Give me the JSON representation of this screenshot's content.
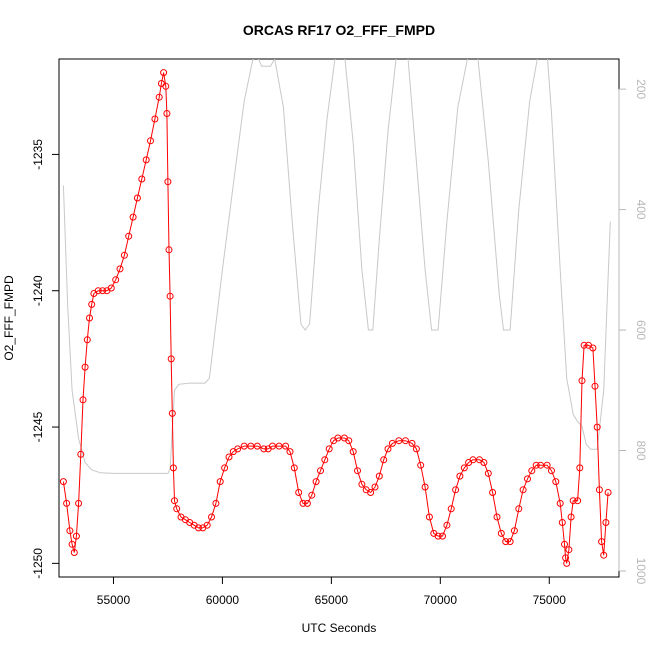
{
  "chart_data": {
    "type": "line",
    "title": "ORCAS RF17 O2_FFF_FMPD",
    "xlabel": "UTC Seconds",
    "ylabel": "O2_FFF_FMPD",
    "xlim": [
      52500,
      78200
    ],
    "ylim": [
      -1250.5,
      -1231.5
    ],
    "x_ticks": [
      55000,
      60000,
      65000,
      70000,
      75000
    ],
    "y_ticks": [
      -1235,
      -1240,
      -1245,
      -1250
    ],
    "right_axis": {
      "label": "",
      "ylim": [
        1010,
        150
      ],
      "ticks": [
        200,
        400,
        600,
        800,
        1000
      ],
      "color": "#b8b8b8"
    },
    "grid": false,
    "series": [
      {
        "role": "primary",
        "style": "line+circles",
        "color": "#ff0000",
        "points": [
          [
            52700,
            -1247.0
          ],
          [
            52850,
            -1247.8
          ],
          [
            53000,
            -1248.8
          ],
          [
            53100,
            -1249.3
          ],
          [
            53200,
            -1249.6
          ],
          [
            53300,
            -1249.0
          ],
          [
            53400,
            -1247.8
          ],
          [
            53500,
            -1246.0
          ],
          [
            53600,
            -1244.0
          ],
          [
            53700,
            -1242.8
          ],
          [
            53800,
            -1241.8
          ],
          [
            53900,
            -1241.0
          ],
          [
            54000,
            -1240.5
          ],
          [
            54100,
            -1240.1
          ],
          [
            54300,
            -1240.0
          ],
          [
            54500,
            -1240.0
          ],
          [
            54700,
            -1240.0
          ],
          [
            54900,
            -1239.9
          ],
          [
            55100,
            -1239.6
          ],
          [
            55300,
            -1239.2
          ],
          [
            55500,
            -1238.7
          ],
          [
            55700,
            -1238.0
          ],
          [
            55900,
            -1237.3
          ],
          [
            56100,
            -1236.6
          ],
          [
            56300,
            -1235.9
          ],
          [
            56500,
            -1235.2
          ],
          [
            56700,
            -1234.5
          ],
          [
            56900,
            -1233.7
          ],
          [
            57100,
            -1232.9
          ],
          [
            57200,
            -1232.4
          ],
          [
            57300,
            -1232.0
          ],
          [
            57400,
            -1232.5
          ],
          [
            57450,
            -1233.5
          ],
          [
            57500,
            -1236.0
          ],
          [
            57550,
            -1238.5
          ],
          [
            57600,
            -1240.2
          ],
          [
            57650,
            -1242.5
          ],
          [
            57700,
            -1244.5
          ],
          [
            57750,
            -1246.5
          ],
          [
            57800,
            -1247.7
          ],
          [
            57900,
            -1248.0
          ],
          [
            58100,
            -1248.3
          ],
          [
            58300,
            -1248.4
          ],
          [
            58500,
            -1248.5
          ],
          [
            58700,
            -1248.6
          ],
          [
            58900,
            -1248.7
          ],
          [
            59100,
            -1248.7
          ],
          [
            59300,
            -1248.6
          ],
          [
            59500,
            -1248.3
          ],
          [
            59700,
            -1247.8
          ],
          [
            59900,
            -1247.0
          ],
          [
            60100,
            -1246.5
          ],
          [
            60300,
            -1246.1
          ],
          [
            60500,
            -1245.9
          ],
          [
            60700,
            -1245.8
          ],
          [
            61000,
            -1245.7
          ],
          [
            61300,
            -1245.7
          ],
          [
            61600,
            -1245.7
          ],
          [
            61900,
            -1245.8
          ],
          [
            62100,
            -1245.8
          ],
          [
            62300,
            -1245.7
          ],
          [
            62600,
            -1245.7
          ],
          [
            62900,
            -1245.7
          ],
          [
            63100,
            -1245.9
          ],
          [
            63300,
            -1246.5
          ],
          [
            63500,
            -1247.4
          ],
          [
            63700,
            -1247.8
          ],
          [
            63900,
            -1247.8
          ],
          [
            64100,
            -1247.5
          ],
          [
            64300,
            -1247.0
          ],
          [
            64500,
            -1246.6
          ],
          [
            64700,
            -1246.2
          ],
          [
            64900,
            -1245.8
          ],
          [
            65100,
            -1245.5
          ],
          [
            65300,
            -1245.4
          ],
          [
            65600,
            -1245.4
          ],
          [
            65800,
            -1245.5
          ],
          [
            66000,
            -1245.9
          ],
          [
            66200,
            -1246.6
          ],
          [
            66400,
            -1247.1
          ],
          [
            66600,
            -1247.3
          ],
          [
            66800,
            -1247.4
          ],
          [
            67000,
            -1247.2
          ],
          [
            67200,
            -1246.8
          ],
          [
            67400,
            -1246.2
          ],
          [
            67600,
            -1245.8
          ],
          [
            67800,
            -1245.6
          ],
          [
            68100,
            -1245.5
          ],
          [
            68400,
            -1245.5
          ],
          [
            68700,
            -1245.6
          ],
          [
            68900,
            -1245.8
          ],
          [
            69100,
            -1246.4
          ],
          [
            69300,
            -1247.2
          ],
          [
            69500,
            -1248.3
          ],
          [
            69700,
            -1248.9
          ],
          [
            69900,
            -1249.0
          ],
          [
            70100,
            -1249.0
          ],
          [
            70300,
            -1248.6
          ],
          [
            70500,
            -1248.0
          ],
          [
            70700,
            -1247.3
          ],
          [
            70900,
            -1246.8
          ],
          [
            71100,
            -1246.5
          ],
          [
            71300,
            -1246.3
          ],
          [
            71500,
            -1246.2
          ],
          [
            71800,
            -1246.2
          ],
          [
            72000,
            -1246.3
          ],
          [
            72200,
            -1246.7
          ],
          [
            72400,
            -1247.4
          ],
          [
            72600,
            -1248.3
          ],
          [
            72800,
            -1248.9
          ],
          [
            73000,
            -1249.2
          ],
          [
            73200,
            -1249.2
          ],
          [
            73400,
            -1248.8
          ],
          [
            73600,
            -1248.0
          ],
          [
            73800,
            -1247.3
          ],
          [
            74000,
            -1246.9
          ],
          [
            74200,
            -1246.6
          ],
          [
            74400,
            -1246.4
          ],
          [
            74600,
            -1246.4
          ],
          [
            74900,
            -1246.4
          ],
          [
            75100,
            -1246.6
          ],
          [
            75300,
            -1247.0
          ],
          [
            75500,
            -1247.8
          ],
          [
            75600,
            -1248.5
          ],
          [
            75700,
            -1249.3
          ],
          [
            75750,
            -1249.8
          ],
          [
            75800,
            -1250.0
          ],
          [
            75900,
            -1249.5
          ],
          [
            76000,
            -1248.3
          ],
          [
            76100,
            -1247.7
          ],
          [
            76300,
            -1247.7
          ],
          [
            76400,
            -1246.5
          ],
          [
            76500,
            -1243.3
          ],
          [
            76600,
            -1242.0
          ],
          [
            76800,
            -1242.0
          ],
          [
            77000,
            -1242.1
          ],
          [
            77100,
            -1243.5
          ],
          [
            77200,
            -1245.0
          ],
          [
            77300,
            -1247.3
          ],
          [
            77400,
            -1249.2
          ],
          [
            77500,
            -1249.7
          ],
          [
            77600,
            -1248.5
          ],
          [
            77700,
            -1247.4
          ]
        ]
      },
      {
        "role": "secondary (right axis)",
        "style": "line",
        "color": "#c8c8c8",
        "points": [
          [
            52700,
            360
          ],
          [
            52900,
            560
          ],
          [
            53100,
            700
          ],
          [
            53400,
            780
          ],
          [
            53700,
            820
          ],
          [
            54000,
            832
          ],
          [
            54400,
            837
          ],
          [
            55000,
            838
          ],
          [
            56000,
            838
          ],
          [
            57000,
            838
          ],
          [
            57500,
            838
          ],
          [
            57600,
            830
          ],
          [
            57800,
            700
          ],
          [
            58000,
            690
          ],
          [
            58500,
            688
          ],
          [
            59200,
            688
          ],
          [
            59400,
            680
          ],
          [
            60000,
            500
          ],
          [
            60600,
            330
          ],
          [
            61000,
            220
          ],
          [
            61400,
            150
          ],
          [
            61600,
            145
          ],
          [
            61800,
            162
          ],
          [
            62200,
            162
          ],
          [
            62400,
            150
          ],
          [
            62800,
            230
          ],
          [
            63200,
            420
          ],
          [
            63600,
            590
          ],
          [
            63800,
            600
          ],
          [
            64000,
            590
          ],
          [
            64400,
            400
          ],
          [
            64800,
            250
          ],
          [
            65200,
            140
          ],
          [
            65600,
            140
          ],
          [
            66000,
            290
          ],
          [
            66400,
            500
          ],
          [
            66700,
            600
          ],
          [
            66900,
            600
          ],
          [
            67200,
            450
          ],
          [
            67600,
            270
          ],
          [
            68000,
            140
          ],
          [
            68500,
            140
          ],
          [
            68900,
            320
          ],
          [
            69300,
            500
          ],
          [
            69600,
            600
          ],
          [
            69900,
            600
          ],
          [
            70300,
            420
          ],
          [
            70800,
            230
          ],
          [
            71300,
            140
          ],
          [
            71700,
            140
          ],
          [
            72200,
            320
          ],
          [
            72700,
            540
          ],
          [
            72900,
            600
          ],
          [
            73200,
            600
          ],
          [
            73600,
            400
          ],
          [
            74100,
            220
          ],
          [
            74500,
            140
          ],
          [
            74900,
            140
          ],
          [
            75100,
            240
          ],
          [
            75500,
            500
          ],
          [
            75800,
            680
          ],
          [
            76100,
            740
          ],
          [
            76300,
            752
          ],
          [
            76500,
            760
          ],
          [
            76700,
            790
          ],
          [
            76900,
            798
          ],
          [
            77200,
            798
          ],
          [
            77500,
            700
          ],
          [
            77800,
            420
          ]
        ]
      }
    ]
  }
}
